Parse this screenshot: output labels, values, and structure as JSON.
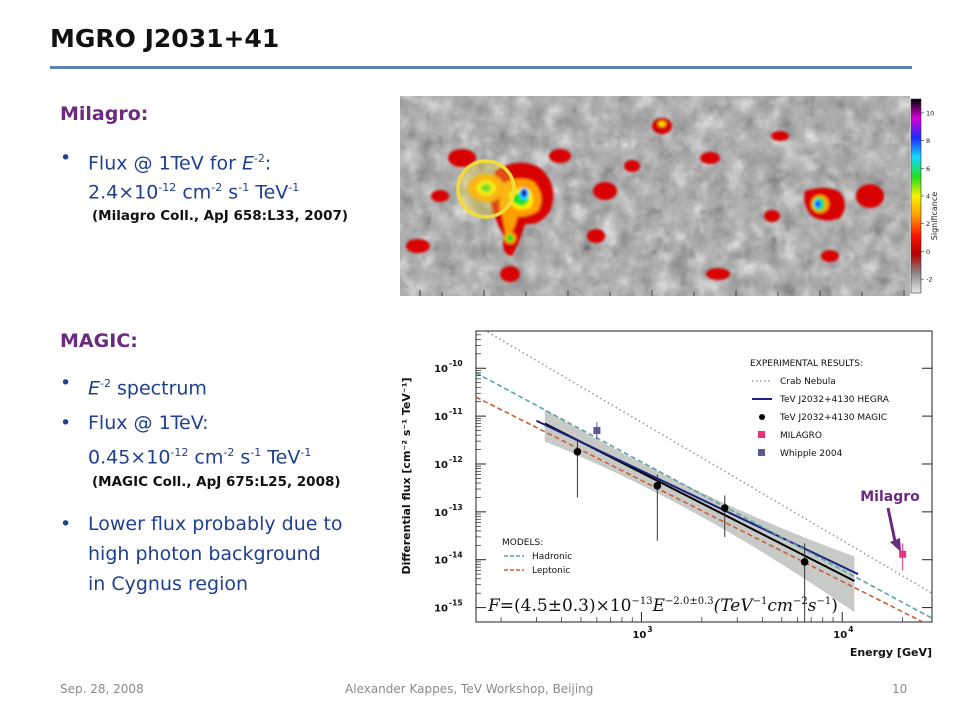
{
  "slide": {
    "title": "MGRO J2031+41",
    "milagro_head": "Milagro:",
    "milagro_b1_a": "Flux @ 1TeV for ",
    "milagro_b1_E": "E",
    "milagro_b1_exp": "-2",
    "milagro_b1_colon": ":",
    "milagro_b1_v": "2.4×10",
    "milagro_b1_vexp": "-12",
    "milagro_b1_u1": " cm",
    "milagro_b1_u1exp": "-2",
    "milagro_b1_u2": " s",
    "milagro_b1_u2exp": "-1",
    "milagro_b1_u3": " TeV",
    "milagro_b1_u3exp": "-1",
    "milagro_ref": "(Milagro Coll., ApJ 658:L33, 2007)",
    "magic_head": "MAGIC:",
    "magic_b1_E": "E",
    "magic_b1_exp": "-2",
    "magic_b1_txt": " spectrum",
    "magic_b2_a": "Flux @ 1TeV:",
    "magic_b2_v": "0.45×10",
    "magic_b2_vexp": "-12",
    "magic_b2_u1": " cm",
    "magic_b2_u1exp": "-2",
    "magic_b2_u2": " s",
    "magic_b2_u2exp": "-1",
    "magic_b2_u3": " TeV",
    "magic_b2_u3exp": "-1",
    "magic_ref": "(MAGIC Coll., ApJ 675:L25, 2008)",
    "magic_b3_l1": "Lower flux probably due to",
    "magic_b3_l2": "high photon background",
    "magic_b3_l3": "in Cygnus region",
    "bullet_char": "•"
  },
  "footer": {
    "date": "Sep. 28, 2008",
    "center": "Alexander Kappes, TeV Workshop,  Beijing",
    "page": "10"
  },
  "skymap": {
    "colorbar_label": "Significance",
    "colorbar_ticks": [
      "10",
      "8",
      "6",
      "4",
      "2",
      "0",
      "-2"
    ],
    "colorbar_tick_values": [
      10,
      8,
      6,
      4,
      2,
      0,
      -2
    ],
    "colorbar_range": [
      -3,
      11
    ],
    "colorbar_colors": [
      "#000000",
      "#d800d8",
      "#1a2aff",
      "#15d8ff",
      "#20e020",
      "#f8f000",
      "#ffa000",
      "#ff1500",
      "#b20000",
      "#8a8a8a",
      "#e8e8e8"
    ],
    "circle_color": "#f2dc3a"
  },
  "chart_data": {
    "type": "scatter",
    "ylabel": "Differential flux [cm⁻² s⁻¹ TeV⁻¹]",
    "xlabel": "Energy [GeV]",
    "xscale": "log",
    "yscale": "log",
    "xlim": [
      150,
      28000
    ],
    "ylim": [
      5e-16,
      6e-10
    ],
    "x_ticks": [
      {
        "value": 1000,
        "label": "10",
        "exp": "3"
      },
      {
        "value": 10000,
        "label": "10",
        "exp": "4"
      }
    ],
    "y_ticks": [
      {
        "value": 1e-10,
        "label": "10",
        "exp": "-10"
      },
      {
        "value": 1e-11,
        "label": "10",
        "exp": "-11"
      },
      {
        "value": 1e-12,
        "label": "10",
        "exp": "-12"
      },
      {
        "value": 1e-13,
        "label": "10",
        "exp": "-13"
      },
      {
        "value": 1e-14,
        "label": "10",
        "exp": "-14"
      },
      {
        "value": 1e-15,
        "label": "10",
        "exp": "-15"
      }
    ],
    "legend_experimental": {
      "title": "EXPERIMENTAL RESULTS:",
      "entries": [
        {
          "label": "Crab Nebula",
          "kind": "dotted-line",
          "color": "#9a9a9a"
        },
        {
          "label": "TeV J2032+4130 HEGRA",
          "kind": "line",
          "color": "#1a237e"
        },
        {
          "label": "TeV J2032+4130 MAGIC",
          "kind": "circle",
          "color": "#000000"
        },
        {
          "label": "MILAGRO",
          "kind": "square",
          "color": "#e8327a"
        },
        {
          "label": "Whipple 2004",
          "kind": "square",
          "color": "#5a5a90"
        }
      ]
    },
    "legend_models": {
      "title": "MODELS:",
      "entries": [
        {
          "label": "Hadronic",
          "kind": "dashed-line",
          "color": "#5aa5a5"
        },
        {
          "label": "Leptonic",
          "kind": "dashed-line",
          "color": "#c8603a"
        }
      ]
    },
    "formula": {
      "F": "F",
      "eq": "=(4.5±0.3)×10",
      "e1": "−13",
      "E": "E",
      "e2": "−2.0±0.3",
      "tail": "(TeV",
      "e3": "−1",
      "cm": "cm",
      "e4": "−2",
      "s": "s",
      "e5": "−1",
      "close": ")"
    },
    "annotation": {
      "text": "Milagro",
      "color": "#6b2a7e"
    },
    "series": [
      {
        "name": "Crab Nebula",
        "kind": "line",
        "style": "dotted",
        "color": "#9a9a9a",
        "x": [
          150,
          28000
        ],
        "y": [
          8e-10,
          2e-15
        ]
      },
      {
        "name": "TeV J2032+4130 HEGRA",
        "kind": "line",
        "style": "solid",
        "color": "#1a237e",
        "x": [
          300,
          12000
        ],
        "y": [
          8e-12,
          5e-15
        ]
      },
      {
        "name": "Hadronic",
        "kind": "line",
        "style": "dashed",
        "color": "#5aa5a5",
        "x": [
          150,
          28000
        ],
        "y": [
          8e-11,
          6e-16
        ]
      },
      {
        "name": "Leptonic",
        "kind": "line",
        "style": "dashed",
        "color": "#c8603a",
        "x": [
          150,
          28000
        ],
        "y": [
          2.5e-11,
          4e-16
        ]
      },
      {
        "name": "TeV J2032+4130 MAGIC",
        "kind": "points",
        "marker": "circle",
        "color": "#000000",
        "x": [
          480,
          1200,
          2600,
          6500
        ],
        "y": [
          1.8e-12,
          3.5e-13,
          1.2e-13,
          9e-15
        ],
        "err_low": [
          2e-13,
          2.5e-14,
          3e-14,
          5e-16
        ],
        "err_high": [
          3e-12,
          6e-13,
          2.2e-13,
          2.2e-14
        ]
      },
      {
        "name": "MILAGRO",
        "kind": "points",
        "marker": "square",
        "color": "#e8327a",
        "x": [
          20000
        ],
        "y": [
          1.3e-14
        ],
        "err_low": [
          6e-15
        ],
        "err_high": [
          2.2e-14
        ]
      },
      {
        "name": "Whipple 2004",
        "kind": "points",
        "marker": "square",
        "color": "#5a5a90",
        "x": [
          600
        ],
        "y": [
          5e-12
        ],
        "err_low": [
          3.2e-12
        ],
        "err_high": [
          7.5e-12
        ]
      }
    ],
    "fit_band": {
      "x": [
        330,
        11500
      ],
      "y": [
        7e-12,
        3.6e-15
      ],
      "lo_factor": 0.55,
      "hi_factor": 1.6,
      "color": "#b4b8b4"
    }
  }
}
